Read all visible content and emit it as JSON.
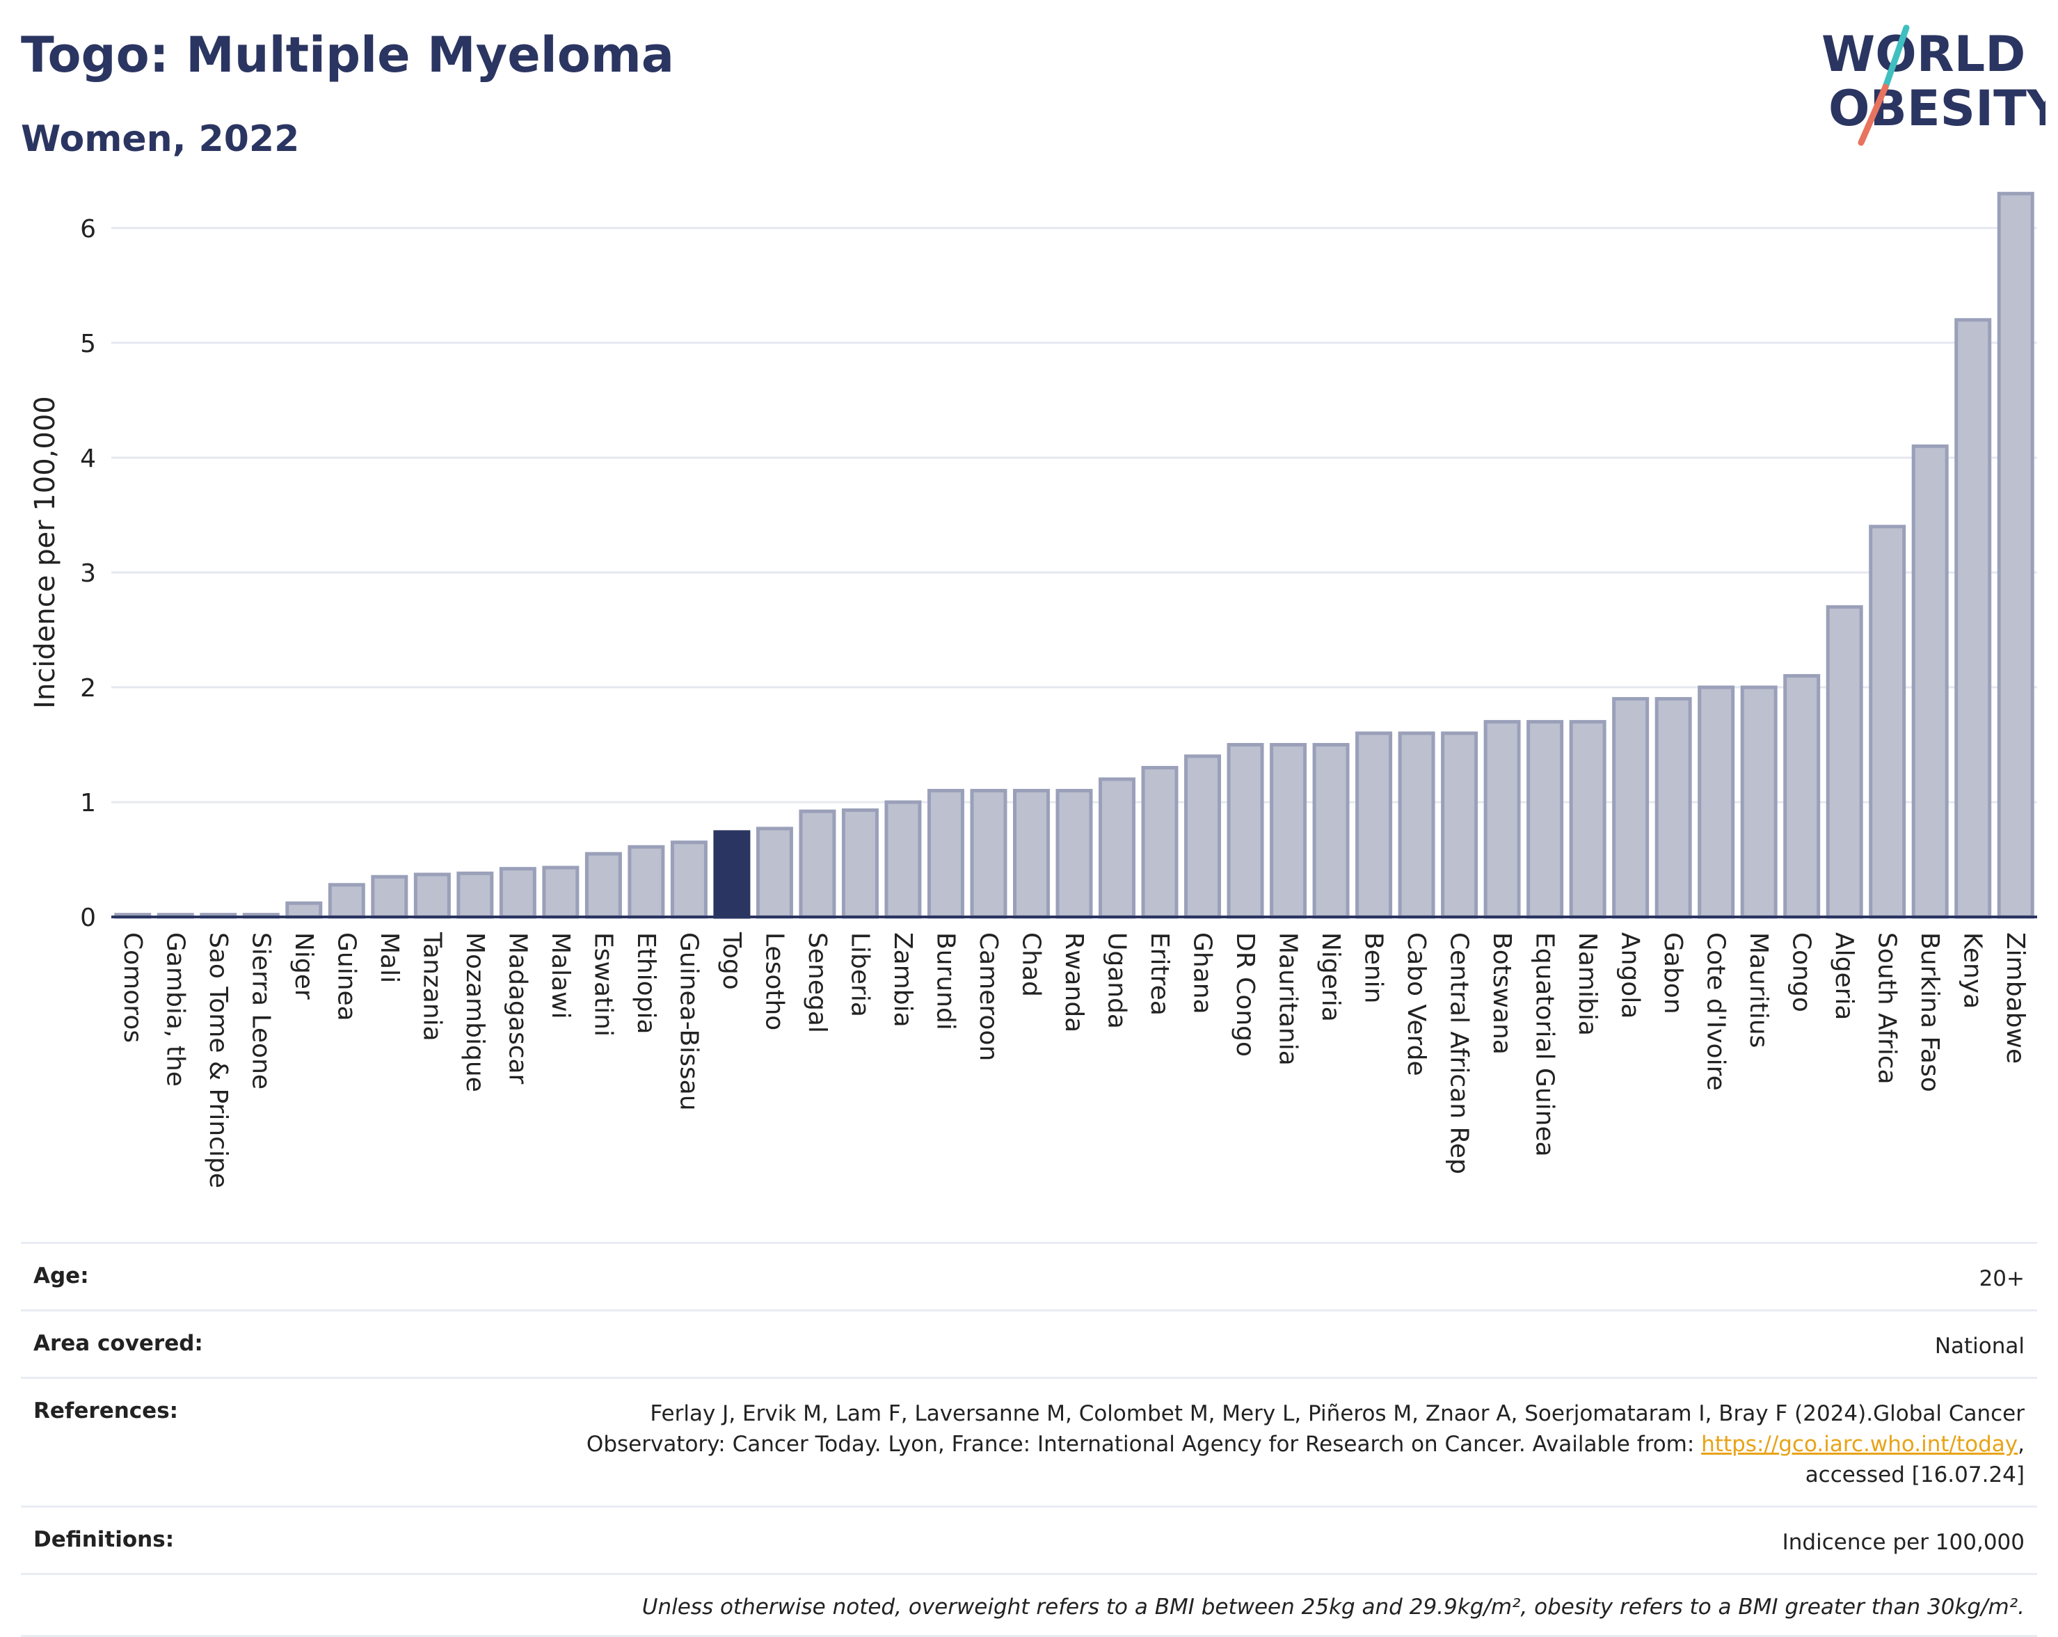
{
  "header": {
    "title": "Togo: Multiple Myeloma",
    "subtitle": "Women, 2022"
  },
  "logo": {
    "line1": "WORLD",
    "line2": "OBESITY",
    "colors": {
      "text": "#2b3561",
      "slash_top": "#3fbfc0",
      "slash_bottom": "#e8735f"
    }
  },
  "colors": {
    "bar": "#bcc0cf",
    "bar_stroke": "#9aa0b9",
    "highlight": "#2b3561",
    "grid": "#e6e8ef",
    "axis": "#2b3561"
  },
  "chart_data": {
    "type": "bar",
    "ylabel": "Incidence per 100,000",
    "ylim": [
      0,
      6.35
    ],
    "yticks": [
      0,
      1,
      2,
      3,
      4,
      5,
      6
    ],
    "grid": true,
    "highlight": "Togo",
    "categories": [
      "Comoros",
      "Gambia, the",
      "Sao Tome & Principe",
      "Sierra Leone",
      "Niger",
      "Guinea",
      "Mali",
      "Tanzania",
      "Mozambique",
      "Madagascar",
      "Malawi",
      "Eswatini",
      "Ethiopia",
      "Guinea-Bissau",
      "Togo",
      "Lesotho",
      "Senegal",
      "Liberia",
      "Zambia",
      "Burundi",
      "Cameroon",
      "Chad",
      "Rwanda",
      "Uganda",
      "Eritrea",
      "Ghana",
      "DR Congo",
      "Mauritania",
      "Nigeria",
      "Benin",
      "Cabo Verde",
      "Central African Rep",
      "Botswana",
      "Equatorial Guinea",
      "Namibia",
      "Angola",
      "Gabon",
      "Cote d'Ivoire",
      "Mauritius",
      "Congo",
      "Algeria",
      "South Africa",
      "Burkina Faso",
      "Kenya",
      "Zimbabwe"
    ],
    "values": [
      0.02,
      0.02,
      0.02,
      0.02,
      0.12,
      0.28,
      0.35,
      0.37,
      0.38,
      0.42,
      0.43,
      0.55,
      0.61,
      0.65,
      0.74,
      0.77,
      0.92,
      0.93,
      1.0,
      1.1,
      1.1,
      1.1,
      1.1,
      1.2,
      1.3,
      1.4,
      1.5,
      1.5,
      1.5,
      1.6,
      1.6,
      1.6,
      1.7,
      1.7,
      1.7,
      1.9,
      1.9,
      2.0,
      2.0,
      2.1,
      2.7,
      3.4,
      4.1,
      5.2,
      6.3
    ]
  },
  "info": {
    "age_label": "Age:",
    "age_value": "20+",
    "area_label": "Area covered:",
    "area_value": "National",
    "references_label": "References:",
    "references_line1": "Ferlay J, Ervik M, Lam F, Laversanne M, Colombet M, Mery L, Piñeros M, Znaor A, Soerjomataram I, Bray F (2024).Global Cancer",
    "references_line2_pre": "Observatory: Cancer Today. Lyon, France: International Agency for Research on Cancer. Available from: ",
    "references_link": "https://gco.iarc.who.int/today",
    "references_line2_post": ",",
    "references_line3": "accessed [16.07.24]",
    "definitions_label": "Definitions:",
    "definitions_value": "Indicence per 100,000",
    "note": "Unless otherwise noted, overweight refers to a BMI between 25kg and 29.9kg/m², obesity refers to a BMI greater than 30kg/m²."
  }
}
